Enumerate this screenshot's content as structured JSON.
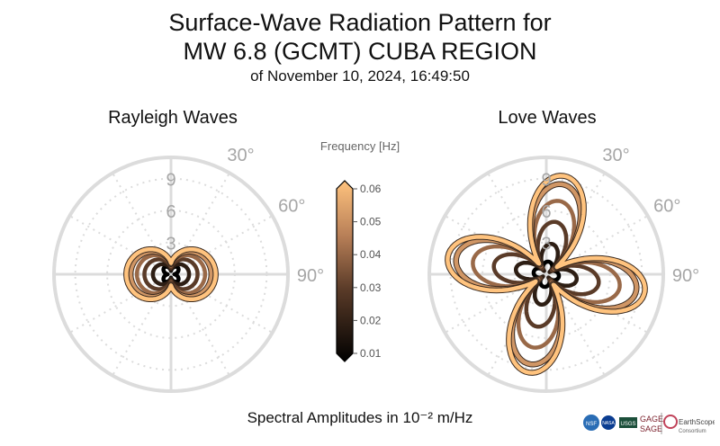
{
  "title": {
    "line1": "Surface-Wave Radiation Pattern for",
    "line2": "MW 6.8 (GCMT) CUBA REGION",
    "line3": "of November 10, 2024, 16:49:50"
  },
  "footer_label": "Spectral Amplitudes in 10⁻² m/Hz",
  "logos": {
    "nsf": "NSF",
    "nasa": "NASA",
    "usgs": "USGS",
    "gage": "GAGE",
    "sage": "SAGE",
    "earthscope": "EarthScope",
    "consortium": "Consortium"
  },
  "colors": {
    "grid": "#dcdcdc",
    "tick_text": "#a6a6a6",
    "cmap_low": "#000000",
    "cmap_mid": "#8a5a3c",
    "cmap_high": "#ffc37e"
  },
  "chart_data": {
    "type": "polar",
    "radial_ticks": [
      "3",
      "6",
      "9"
    ],
    "radial_max": 11,
    "angle_ticks": [
      {
        "label": "30°",
        "angle": 30
      },
      {
        "label": "60°",
        "angle": 60
      },
      {
        "label": "90°",
        "angle": 90
      }
    ],
    "colorbar": {
      "title": "Frequency [Hz]",
      "min": 0.01,
      "max": 0.06,
      "ticks": [
        "0.01",
        "0.02",
        "0.03",
        "0.04",
        "0.05",
        "0.06"
      ]
    },
    "frequencies": [
      0.01,
      0.02,
      0.03,
      0.04,
      0.05,
      0.06
    ],
    "panels": [
      {
        "name": "Rayleigh Waves",
        "pattern": "two-lobe",
        "lobe_axis_deg": 90,
        "amplitudes": [
          0.9,
          1.7,
          2.5,
          3.2,
          3.8,
          4.2
        ]
      },
      {
        "name": "Love Waves",
        "pattern": "four-lobe",
        "lobe_axis_deg": 0,
        "amplitudes": [
          1.2,
          2.9,
          5.0,
          7.0,
          8.6,
          9.4
        ]
      }
    ]
  }
}
